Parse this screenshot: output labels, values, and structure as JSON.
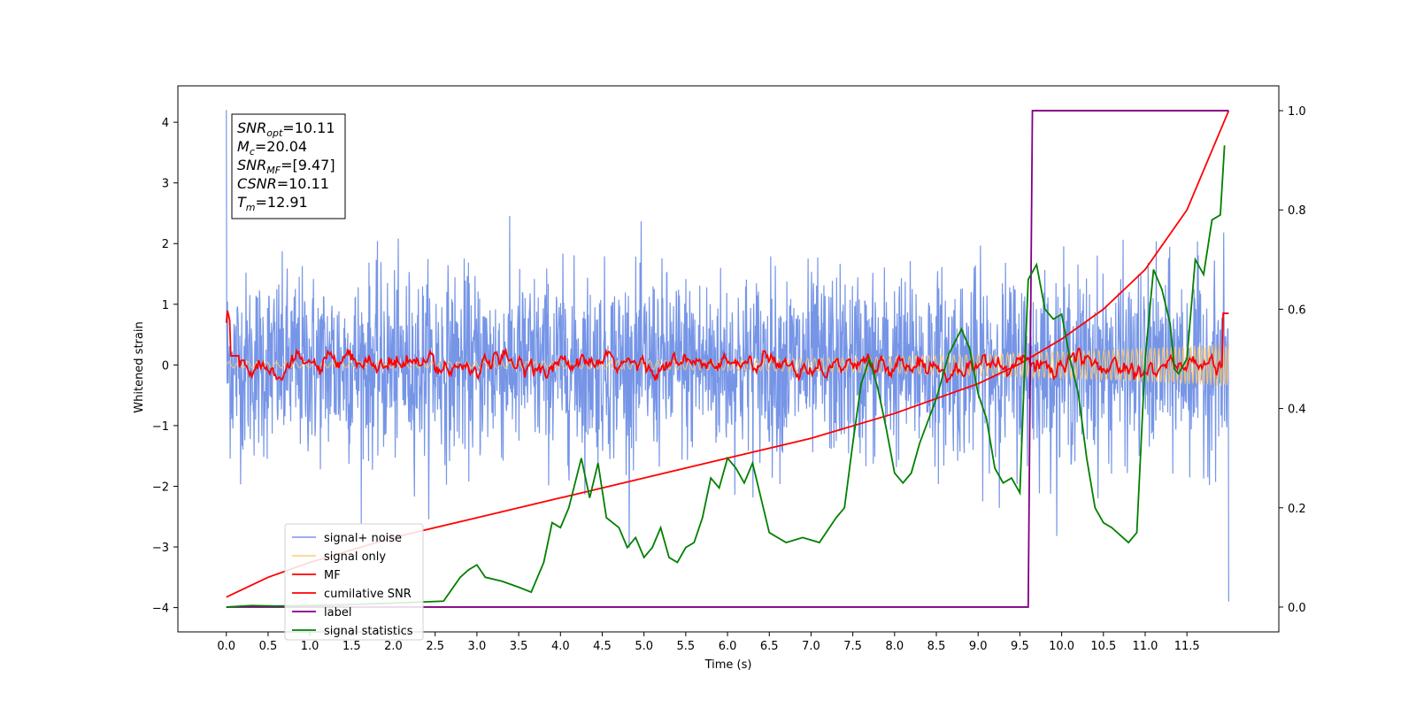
{
  "chart_data": {
    "type": "line",
    "title": "",
    "xlabel": "Time (s)",
    "ylabel": "Whitened strain",
    "xlim": [
      -0.58,
      12.6
    ],
    "ylim": [
      -4.4,
      4.6
    ],
    "y2lim": [
      -0.05,
      1.05
    ],
    "x_ticks": [
      "0.0",
      "0.5",
      "1.0",
      "1.5",
      "2.0",
      "2.5",
      "3.0",
      "3.5",
      "4.0",
      "4.5",
      "5.0",
      "5.5",
      "6.0",
      "6.5",
      "7.0",
      "7.5",
      "8.0",
      "8.5",
      "9.0",
      "9.5",
      "10.0",
      "10.5",
      "11.0",
      "11.5"
    ],
    "y_ticks": [
      "4",
      "3",
      "2",
      "1",
      "0",
      "−1",
      "−2",
      "−3",
      "−4"
    ],
    "y2_ticks": [
      "1.0",
      "0.8",
      "0.6",
      "0.4",
      "0.2",
      "0.0"
    ],
    "grid": false,
    "legend_position": "lower-left",
    "info_box": [
      {
        "base": "SNR",
        "sub": "opt",
        "value": "=10.11"
      },
      {
        "base": "M",
        "sub": "c",
        "value": "=20.04"
      },
      {
        "base": "SNR",
        "sub": "MF",
        "value": "=[9.47]"
      },
      {
        "base": "CSNR",
        "sub": "",
        "value": "=10.11"
      },
      {
        "base": "T",
        "sub": "m",
        "value": "=12.91"
      }
    ],
    "series": [
      {
        "name": "signal+ noise",
        "color": "#6f8fe6",
        "axis": "left",
        "kind": "noise",
        "description_range": [
          -2.1,
          2.1
        ],
        "x_range": [
          0,
          12.0
        ]
      },
      {
        "name": "signal only",
        "color": "#f7c873",
        "axis": "left",
        "kind": "chirp",
        "amplitude_start": 0.05,
        "amplitude_end": 0.35,
        "x_range": [
          0,
          12.0
        ]
      },
      {
        "name": "MF",
        "color": "#ff0000",
        "axis": "left",
        "kind": "mf",
        "x_range": [
          0,
          12.0
        ]
      },
      {
        "name": "cumilative SNR",
        "color": "#ff0000",
        "axis": "right",
        "x": [
          0,
          0.5,
          1.0,
          2.0,
          3.0,
          4.0,
          5.0,
          6.0,
          7.0,
          8.0,
          9.0,
          9.5,
          10.0,
          10.5,
          11.0,
          11.5,
          12.0
        ],
        "y": [
          0.02,
          0.06,
          0.09,
          0.14,
          0.18,
          0.22,
          0.26,
          0.3,
          0.34,
          0.39,
          0.45,
          0.49,
          0.54,
          0.6,
          0.68,
          0.8,
          1.0
        ]
      },
      {
        "name": "label",
        "color": "#800080",
        "axis": "right",
        "x": [
          0,
          9.6,
          9.65,
          12.0
        ],
        "y": [
          0.0,
          0.0,
          1.0,
          1.0
        ]
      },
      {
        "name": "signal statistics",
        "color": "#008000",
        "axis": "right",
        "x": [
          0,
          0.3,
          0.6,
          1.0,
          1.5,
          2.0,
          2.3,
          2.6,
          2.8,
          2.9,
          3.0,
          3.1,
          3.3,
          3.5,
          3.65,
          3.8,
          3.9,
          4.0,
          4.1,
          4.25,
          4.35,
          4.45,
          4.55,
          4.7,
          4.8,
          4.9,
          5.0,
          5.1,
          5.2,
          5.3,
          5.4,
          5.5,
          5.6,
          5.7,
          5.8,
          5.9,
          6.0,
          6.1,
          6.2,
          6.3,
          6.4,
          6.5,
          6.7,
          6.9,
          7.1,
          7.3,
          7.4,
          7.5,
          7.6,
          7.7,
          7.8,
          7.9,
          8.0,
          8.1,
          8.2,
          8.3,
          8.5,
          8.65,
          8.8,
          8.9,
          9.0,
          9.1,
          9.2,
          9.3,
          9.4,
          9.5,
          9.55,
          9.6,
          9.7,
          9.8,
          9.9,
          10.0,
          10.1,
          10.2,
          10.3,
          10.4,
          10.5,
          10.6,
          10.8,
          10.9,
          11.0,
          11.1,
          11.2,
          11.3,
          11.35,
          11.4,
          11.5,
          11.6,
          11.7,
          11.8,
          11.9,
          11.95
        ],
        "y": [
          0.0,
          0.003,
          0.002,
          0.003,
          0.005,
          0.008,
          0.01,
          0.012,
          0.06,
          0.075,
          0.085,
          0.06,
          0.052,
          0.04,
          0.03,
          0.09,
          0.17,
          0.16,
          0.2,
          0.3,
          0.22,
          0.29,
          0.18,
          0.16,
          0.12,
          0.14,
          0.1,
          0.12,
          0.16,
          0.1,
          0.09,
          0.12,
          0.13,
          0.18,
          0.26,
          0.24,
          0.3,
          0.28,
          0.25,
          0.29,
          0.22,
          0.15,
          0.13,
          0.14,
          0.13,
          0.18,
          0.2,
          0.33,
          0.45,
          0.5,
          0.44,
          0.36,
          0.27,
          0.25,
          0.27,
          0.33,
          0.42,
          0.51,
          0.56,
          0.52,
          0.43,
          0.38,
          0.28,
          0.25,
          0.26,
          0.23,
          0.45,
          0.66,
          0.69,
          0.6,
          0.58,
          0.59,
          0.5,
          0.43,
          0.3,
          0.2,
          0.17,
          0.16,
          0.13,
          0.15,
          0.5,
          0.68,
          0.64,
          0.57,
          0.48,
          0.47,
          0.5,
          0.7,
          0.67,
          0.78,
          0.79,
          0.93
        ]
      }
    ]
  }
}
